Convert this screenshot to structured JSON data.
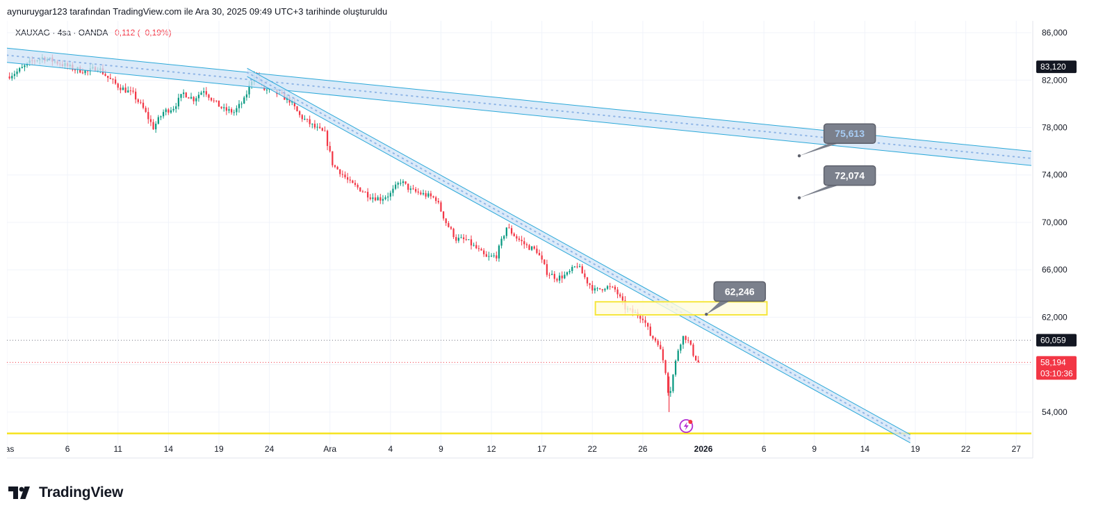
{
  "header": {
    "attribution": "aynuruygar123 tarafından TradingView.com ile Ara 30, 2025 09:49 UTC+3 tarihinde oluşturuldu"
  },
  "legend": {
    "symbol": "XAUXAG",
    "sep1": "·",
    "interval": "4sa",
    "sep2": "·",
    "broker": "OANDA",
    "change": "−0,112 (−0,19%)"
  },
  "brand": {
    "name": "TradingView"
  },
  "colors": {
    "up": "#089981",
    "down": "#f23645",
    "channel_stroke": "#2aa8d8",
    "channel_fill": "#cfe3f7",
    "zone_stroke": "#f5e63c",
    "zone_fill": "#fffbe0",
    "callout_fill": "#7b808c"
  },
  "chart_data": {
    "type": "candlestick",
    "y_scale": "linear",
    "ylim": [
      52000,
      87000
    ],
    "y_ticks": [
      "86,000",
      "82,000",
      "78,000",
      "74,000",
      "70,000",
      "66,000",
      "62,000",
      "54,000"
    ],
    "y_tick_values": [
      86000,
      82000,
      78000,
      74000,
      70000,
      66000,
      62000,
      54000
    ],
    "x_ticks": [
      "Kas",
      "6",
      "11",
      "14",
      "19",
      "24",
      "Ara",
      "4",
      "9",
      "12",
      "17",
      "22",
      "26",
      "2026",
      "6",
      "9",
      "14",
      "19",
      "22",
      "27"
    ],
    "x_tick_index": [
      0,
      6,
      11,
      16,
      21,
      26,
      32,
      38,
      43,
      48,
      53,
      58,
      63,
      69,
      75,
      80,
      85,
      90,
      95,
      100
    ],
    "x_index_range": [
      0,
      101.5
    ],
    "price_labels": [
      {
        "label": "83,120",
        "value": 83120,
        "style": "dark"
      },
      {
        "label": "60,059",
        "value": 60059,
        "style": "dark"
      },
      {
        "label": "58,194",
        "value": 58194,
        "style": "red"
      }
    ],
    "countdown": "03:10:36",
    "horizontal_lines": [
      {
        "value": 60059,
        "style": "dotted-dark"
      },
      {
        "value": 58194,
        "style": "dotted-red"
      },
      {
        "value": 52200,
        "style": "solid-yellow"
      }
    ],
    "channels": [
      {
        "name": "upper-channel",
        "start": {
          "i": 0,
          "top": 84700,
          "bottom": 83500
        },
        "end": {
          "i": 101.5,
          "top": 76000,
          "bottom": 74800
        }
      },
      {
        "name": "falling-channel",
        "start": {
          "i": 23.8,
          "top": 83000,
          "bottom": 82300
        },
        "end": {
          "i": 89.5,
          "top": 52100,
          "bottom": 51400
        }
      }
    ],
    "zones": [
      {
        "name": "yellow-zone",
        "i0": 58.3,
        "i1": 75.3,
        "top": 63300,
        "bottom": 62200
      }
    ],
    "callouts": [
      {
        "label": "75,613",
        "box_i": 83.5,
        "box_y": 77490,
        "anchor_i": 78.5,
        "anchor_y": 75613,
        "highlight": true
      },
      {
        "label": "72,074",
        "box_i": 83.5,
        "box_y": 73950,
        "anchor_i": 78.5,
        "anchor_y": 72074,
        "highlight": false
      },
      {
        "label": "62,246",
        "box_i": 72.6,
        "box_y": 64170,
        "anchor_i": 69.3,
        "anchor_y": 62246,
        "highlight": false
      }
    ],
    "price_path": [
      {
        "i": 0,
        "c": 82300
      },
      {
        "i": 1,
        "c": 82700
      },
      {
        "i": 2.5,
        "c": 83600
      },
      {
        "i": 3.5,
        "c": 83900
      },
      {
        "i": 5,
        "c": 83500
      },
      {
        "i": 6.5,
        "c": 83000
      },
      {
        "i": 8,
        "c": 82700
      },
      {
        "i": 9,
        "c": 83100
      },
      {
        "i": 10,
        "c": 82200
      },
      {
        "i": 11,
        "c": 81500
      },
      {
        "i": 12.5,
        "c": 80800
      },
      {
        "i": 13.5,
        "c": 79600
      },
      {
        "i": 14.5,
        "c": 78000
      },
      {
        "i": 15.5,
        "c": 79300
      },
      {
        "i": 16.5,
        "c": 79700
      },
      {
        "i": 17.5,
        "c": 80900
      },
      {
        "i": 18.5,
        "c": 80400
      },
      {
        "i": 19.5,
        "c": 81200
      },
      {
        "i": 20.5,
        "c": 80200
      },
      {
        "i": 21.5,
        "c": 79500
      },
      {
        "i": 22.5,
        "c": 79300
      },
      {
        "i": 23.5,
        "c": 80300
      },
      {
        "i": 24.5,
        "c": 82600
      },
      {
        "i": 25.5,
        "c": 81200
      },
      {
        "i": 26.5,
        "c": 81000
      },
      {
        "i": 28,
        "c": 80300
      },
      {
        "i": 29,
        "c": 79000
      },
      {
        "i": 30.5,
        "c": 78000
      },
      {
        "i": 31.5,
        "c": 77500
      },
      {
        "i": 32.3,
        "c": 74800
      },
      {
        "i": 33,
        "c": 74300
      },
      {
        "i": 34,
        "c": 73300
      },
      {
        "i": 35,
        "c": 72800
      },
      {
        "i": 36,
        "c": 72200
      },
      {
        "i": 37,
        "c": 72000
      },
      {
        "i": 38,
        "c": 72400
      },
      {
        "i": 39,
        "c": 73500
      },
      {
        "i": 40,
        "c": 72700
      },
      {
        "i": 41.5,
        "c": 72300
      },
      {
        "i": 42.5,
        "c": 72000
      },
      {
        "i": 43.5,
        "c": 70000
      },
      {
        "i": 44.5,
        "c": 68600
      },
      {
        "i": 45.5,
        "c": 68500
      },
      {
        "i": 46.5,
        "c": 67800
      },
      {
        "i": 47.5,
        "c": 67000
      },
      {
        "i": 48.5,
        "c": 67200
      },
      {
        "i": 49.5,
        "c": 69600
      },
      {
        "i": 50.5,
        "c": 68700
      },
      {
        "i": 51.5,
        "c": 68000
      },
      {
        "i": 52.5,
        "c": 67600
      },
      {
        "i": 53.5,
        "c": 65800
      },
      {
        "i": 54.5,
        "c": 65300
      },
      {
        "i": 55.5,
        "c": 65600
      },
      {
        "i": 56.5,
        "c": 66400
      },
      {
        "i": 57.5,
        "c": 65000
      },
      {
        "i": 58.3,
        "c": 64200
      },
      {
        "i": 59.3,
        "c": 64600
      },
      {
        "i": 60.3,
        "c": 64300
      },
      {
        "i": 61.3,
        "c": 62700
      },
      {
        "i": 62.3,
        "c": 62300
      },
      {
        "i": 63,
        "c": 62000
      },
      {
        "i": 63.8,
        "c": 60400
      },
      {
        "i": 64.5,
        "c": 59900
      },
      {
        "i": 65.2,
        "c": 57800
      },
      {
        "i": 65.6,
        "c": 55200
      },
      {
        "i": 66.1,
        "c": 57600
      },
      {
        "i": 66.6,
        "c": 59700
      },
      {
        "i": 67.1,
        "c": 60500
      },
      {
        "i": 67.6,
        "c": 59800
      },
      {
        "i": 68.1,
        "c": 58700
      },
      {
        "i": 68.5,
        "c": 58194
      }
    ]
  }
}
